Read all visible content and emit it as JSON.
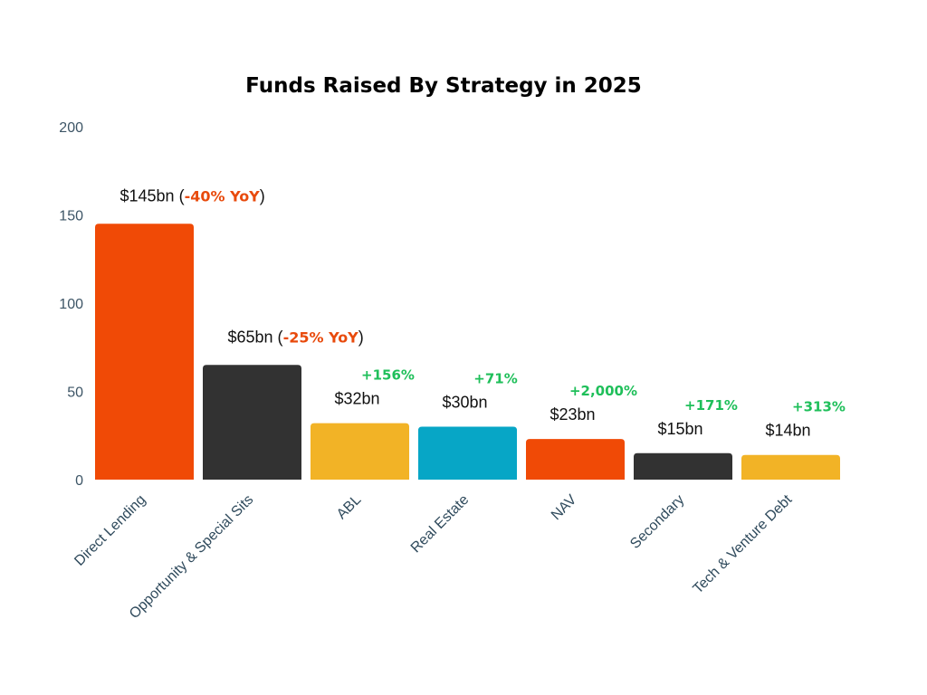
{
  "chart_data": {
    "type": "bar",
    "title": "Funds Raised By Strategy in 2025",
    "xlabel": "",
    "ylabel": "",
    "ylim": [
      0,
      200
    ],
    "yticks": [
      0,
      50,
      100,
      150,
      200
    ],
    "grid": false,
    "categories": [
      "Direct Lending",
      "Opportunity & Special Sits",
      "ABL",
      "Real Estate",
      "NAV",
      "Secondary",
      "Tech & Venture Debt"
    ],
    "values": [
      145,
      65,
      32,
      30,
      23,
      15,
      14
    ],
    "colors": [
      "#f04a06",
      "#323232",
      "#f2b326",
      "#07a6c6",
      "#f04a06",
      "#323232",
      "#f2b326"
    ],
    "value_labels": [
      "$145bn",
      "$65bn",
      "$32bn",
      "$30bn",
      "$23bn",
      "$15bn",
      "$14bn"
    ],
    "yoy_annotations": [
      {
        "index": 0,
        "open": " (",
        "change": "-40% YoY",
        "close": ")",
        "color": "#e84a0c"
      },
      {
        "index": 1,
        "open": " (",
        "change": "-25% YoY",
        "close": ")",
        "color": "#e84a0c"
      }
    ],
    "growth_labels": [
      {
        "index": 2,
        "text": "+156%"
      },
      {
        "index": 3,
        "text": "+71%"
      },
      {
        "index": 4,
        "text": "+2,000%"
      },
      {
        "index": 5,
        "text": "+171%"
      },
      {
        "index": 6,
        "text": "+313%"
      }
    ],
    "growth_color": "#1fbf5a"
  }
}
